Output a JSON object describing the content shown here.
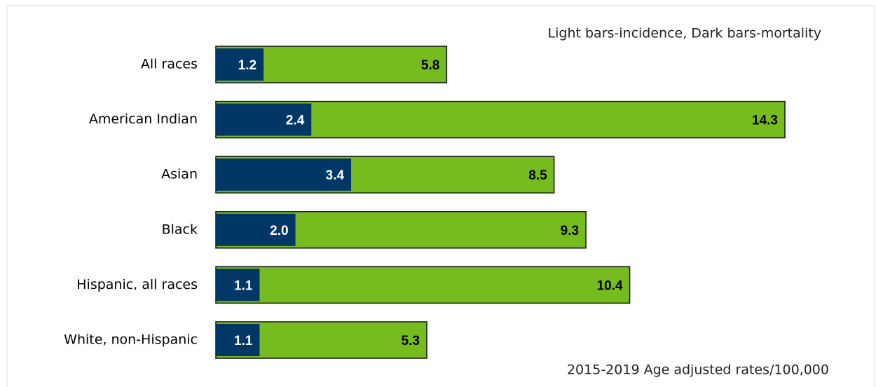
{
  "chart_data": {
    "type": "overlapping-barh",
    "annotation": "Light bars-incidence, Dark bars-mortality",
    "footnote": "2015-2019 Age adjusted rates/100,000",
    "categories": [
      "All races",
      "American Indian",
      "Asian",
      "Black",
      "Hispanic, all races",
      "White, non-Hispanic"
    ],
    "series": [
      {
        "color": "#77bc1f",
        "values": [
          5.8,
          14.3,
          8.5,
          9.3,
          10.4,
          5.3
        ]
      },
      {
        "color": "#003764",
        "values": [
          1.2,
          2.4,
          3.4,
          2.0,
          1.1,
          1.1
        ],
        "value_labels": [
          "1.2",
          "2.4",
          "3.4",
          "2.0",
          "1.1",
          "1.1"
        ]
      }
    ]
  }
}
